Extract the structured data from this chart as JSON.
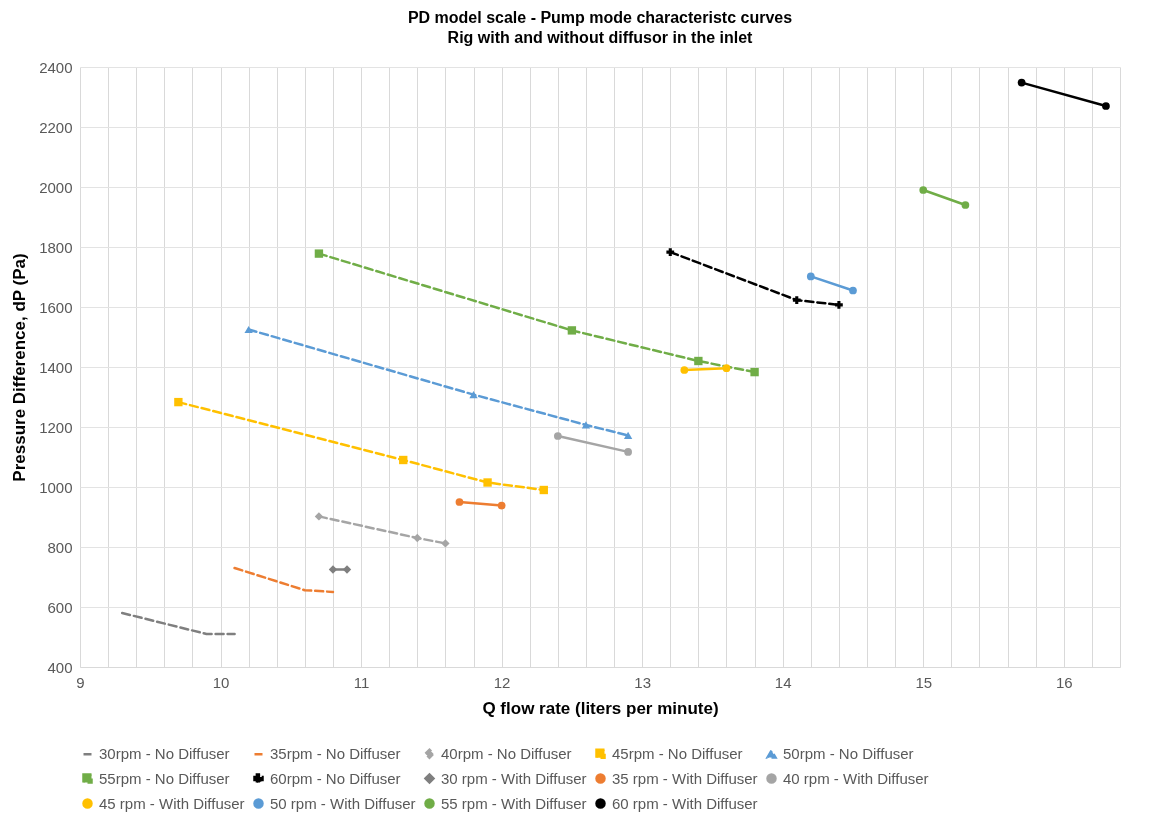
{
  "chart_data": {
    "type": "line",
    "title": "PD model scale - Pump mode characteristc curves",
    "subtitle": "Rig with and without diffusor in the inlet",
    "xlabel": "Q flow rate (liters per minute)",
    "ylabel": "Pressure Difference, dP (Pa)",
    "xlim": [
      9,
      16.4
    ],
    "ylim": [
      400,
      2400
    ],
    "xticks": [
      9,
      {
        "value": 9.2,
        "label": null
      },
      {
        "value": 9.4,
        "label": null
      },
      {
        "value": 9.6,
        "label": null
      },
      {
        "value": 9.8,
        "label": null
      },
      10,
      {
        "value": 10.2,
        "label": null
      },
      {
        "value": 10.4,
        "label": null
      },
      {
        "value": 10.6,
        "label": null
      },
      {
        "value": 10.8,
        "label": null
      },
      11,
      {
        "value": 11.2,
        "label": null
      },
      {
        "value": 11.4,
        "label": null
      },
      {
        "value": 11.6,
        "label": null
      },
      {
        "value": 11.8,
        "label": null
      },
      12,
      {
        "value": 12.2,
        "label": null
      },
      {
        "value": 12.4,
        "label": null
      },
      {
        "value": 12.6,
        "label": null
      },
      {
        "value": 12.8,
        "label": null
      },
      13,
      {
        "value": 13.2,
        "label": null
      },
      {
        "value": 13.4,
        "label": null
      },
      {
        "value": 13.6,
        "label": null
      },
      {
        "value": 13.8,
        "label": null
      },
      14,
      {
        "value": 14.2,
        "label": null
      },
      {
        "value": 14.4,
        "label": null
      },
      {
        "value": 14.6,
        "label": null
      },
      {
        "value": 14.8,
        "label": null
      },
      15,
      {
        "value": 15.2,
        "label": null
      },
      {
        "value": 15.4,
        "label": null
      },
      {
        "value": 15.6,
        "label": null
      },
      {
        "value": 15.8,
        "label": null
      },
      16,
      {
        "value": 16.2,
        "label": null
      },
      {
        "value": 16.4,
        "label": null
      }
    ],
    "yticks": [
      400,
      600,
      800,
      1000,
      1200,
      1400,
      1600,
      1800,
      2000,
      2200,
      2400
    ],
    "grid": true,
    "legend": "bottom",
    "series": [
      {
        "name": "30rpm - No Diffuser",
        "color": "#7f7f7f",
        "marker": "none",
        "line_style": "dashed",
        "x": [
          9.3,
          9.9,
          10.1
        ],
        "values": [
          580,
          510,
          510
        ]
      },
      {
        "name": "35rpm - No Diffuser",
        "color": "#ed7d31",
        "marker": "none",
        "line_style": "dashed",
        "x": [
          10.1,
          10.6,
          10.8
        ],
        "values": [
          730,
          656,
          650
        ]
      },
      {
        "name": "40rpm - No Diffuser",
        "color": "#a5a5a5",
        "marker": "diamond",
        "line_style": "dashed",
        "x": [
          10.7,
          11.4,
          11.6
        ],
        "values": [
          902,
          830,
          812
        ]
      },
      {
        "name": "45rpm - No Diffuser",
        "color": "#ffc000",
        "marker": "square",
        "line_style": "dashed",
        "x": [
          9.7,
          11.3,
          11.9,
          12.3
        ],
        "values": [
          1283,
          1090,
          1015,
          990
        ]
      },
      {
        "name": "50rpm - No Diffuser",
        "color": "#5b9bd5",
        "marker": "triangle",
        "line_style": "dashed",
        "x": [
          10.2,
          11.8,
          12.6,
          12.9
        ],
        "values": [
          1525,
          1308,
          1207,
          1172
        ]
      },
      {
        "name": "55rpm - No Diffuser",
        "color": "#70ad47",
        "marker": "square",
        "line_style": "dashed",
        "x": [
          10.7,
          12.5,
          13.4,
          13.8
        ],
        "values": [
          1778,
          1522,
          1420,
          1383
        ]
      },
      {
        "name": "60rpm - No Diffuser",
        "color": "#000000",
        "marker": "cross",
        "line_style": "dashed",
        "x": [
          13.2,
          14.1,
          14.4
        ],
        "values": [
          1783,
          1623,
          1607
        ]
      },
      {
        "name": "30 rpm - With Diffuser",
        "color": "#7f7f7f",
        "marker": "diamond",
        "line_style": "solid",
        "x": [
          10.8,
          10.9
        ],
        "values": [
          725,
          725
        ]
      },
      {
        "name": "35 rpm - With Diffuser",
        "color": "#ed7d31",
        "marker": "circle",
        "line_style": "solid",
        "x": [
          11.7,
          12.0
        ],
        "values": [
          950,
          938
        ]
      },
      {
        "name": "40 rpm - With Diffuser",
        "color": "#a5a5a5",
        "marker": "circle",
        "line_style": "solid",
        "x": [
          12.4,
          12.9
        ],
        "values": [
          1170,
          1117
        ]
      },
      {
        "name": "45 rpm - With Diffuser",
        "color": "#ffc000",
        "marker": "circle",
        "line_style": "solid",
        "x": [
          13.3,
          13.6
        ],
        "values": [
          1390,
          1396
        ]
      },
      {
        "name": "50 rpm - With Diffuser",
        "color": "#5b9bd5",
        "marker": "circle",
        "line_style": "solid",
        "x": [
          14.2,
          14.5
        ],
        "values": [
          1702,
          1655
        ]
      },
      {
        "name": "55 rpm - With Diffuser",
        "color": "#70ad47",
        "marker": "circle",
        "line_style": "solid",
        "x": [
          15.0,
          15.3
        ],
        "values": [
          1990,
          1940
        ]
      },
      {
        "name": "60 rpm - With Diffuser",
        "color": "#000000",
        "marker": "circle",
        "line_style": "solid",
        "x": [
          15.7,
          16.3
        ],
        "values": [
          2348,
          2270
        ]
      }
    ]
  }
}
